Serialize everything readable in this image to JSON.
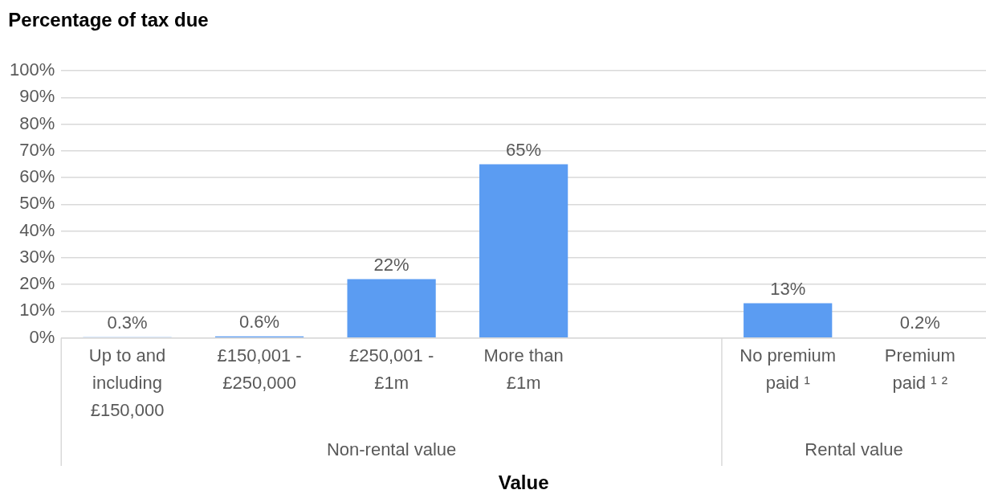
{
  "chart_data": {
    "type": "bar",
    "title": "Percentage of tax due",
    "xlabel": "Value",
    "categories": [
      "Up to and including £150,000",
      "£150,001 - £250,000",
      "£250,001 - £1m",
      "More than £1m",
      null,
      "No premium paid ¹",
      "Premium paid ¹ ²"
    ],
    "values": [
      0.3,
      0.6,
      22,
      65,
      null,
      13,
      0.2
    ],
    "value_labels": [
      "0.3%",
      "0.6%",
      "22%",
      "65%",
      null,
      "13%",
      "0.2%"
    ],
    "color": "#5b9cf2",
    "ylim": [
      0,
      100
    ],
    "yticks": [
      {
        "value": 0,
        "label": "0%"
      },
      {
        "value": 10,
        "label": "10%"
      },
      {
        "value": 20,
        "label": "20%"
      },
      {
        "value": 30,
        "label": "30%"
      },
      {
        "value": 40,
        "label": "40%"
      },
      {
        "value": 50,
        "label": "50%"
      },
      {
        "value": 60,
        "label": "60%"
      },
      {
        "value": 70,
        "label": "70%"
      },
      {
        "value": 80,
        "label": "80%"
      },
      {
        "value": 90,
        "label": "90%"
      },
      {
        "value": 100,
        "label": "100%"
      }
    ],
    "grid": "y",
    "legend": false,
    "annotations": [
      "Non-rental value",
      "Rental value"
    ]
  }
}
